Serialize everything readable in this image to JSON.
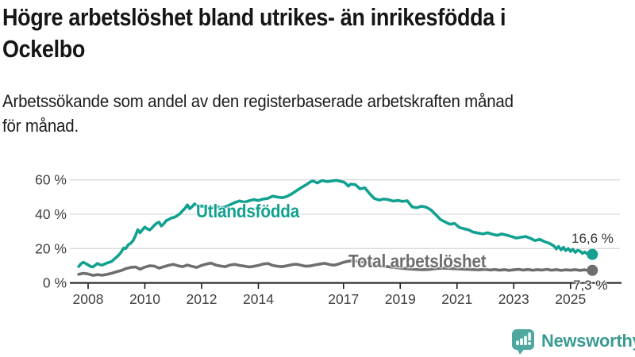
{
  "header": {
    "title_lines": [
      "Högre arbetslöshet bland utrikes- än inrikesfödda i",
      "Ockelbo"
    ],
    "subtitle_lines": [
      "Arbetssökande som andel av den registerbaserade arbetskraften månad",
      "för månad."
    ]
  },
  "chart_data": {
    "type": "line",
    "title": "Högre arbetslöshet bland utrikes- än inrikesfödda i Ockelbo",
    "subtitle": "Arbetssökande som andel av den registerbaserade arbetskraften månad för månad.",
    "unit": "%",
    "grid": true,
    "x_axis": {
      "range": [
        2007.6,
        2025.95
      ],
      "ticks": [
        {
          "label": "2008",
          "value": 2008
        },
        {
          "label": "2010",
          "value": 2010
        },
        {
          "label": "2012",
          "value": 2012
        },
        {
          "label": "2014",
          "value": 2014
        },
        {
          "label": "2017",
          "value": 2017
        },
        {
          "label": "2019",
          "value": 2019
        },
        {
          "label": "2021",
          "value": 2021
        },
        {
          "label": "2023",
          "value": 2023
        },
        {
          "label": "2025",
          "value": 2025
        }
      ]
    },
    "y_axis": {
      "range": [
        0,
        62
      ],
      "ticks": [
        {
          "label": "0 %",
          "value": 0
        },
        {
          "label": "20 %",
          "value": 20
        },
        {
          "label": "40 %",
          "value": 40
        },
        {
          "label": "60 %",
          "value": 60
        }
      ]
    },
    "series": [
      {
        "name": "Utlandsfödda",
        "color": "#12a190",
        "end_label": "16,6 %",
        "end_value": 16.6,
        "points": [
          [
            2007.67,
            9.5
          ],
          [
            2007.75,
            11.2
          ],
          [
            2007.83,
            12.0
          ],
          [
            2007.95,
            11.0
          ],
          [
            2008.08,
            9.6
          ],
          [
            2008.17,
            9.3
          ],
          [
            2008.33,
            11.3
          ],
          [
            2008.42,
            10.6
          ],
          [
            2008.5,
            10.4
          ],
          [
            2008.58,
            11.0
          ],
          [
            2008.67,
            11.6
          ],
          [
            2008.83,
            12.5
          ],
          [
            2008.92,
            13.8
          ],
          [
            2009.0,
            15.0
          ],
          [
            2009.08,
            16.2
          ],
          [
            2009.17,
            18.0
          ],
          [
            2009.25,
            20.3
          ],
          [
            2009.33,
            20.0
          ],
          [
            2009.42,
            22.3
          ],
          [
            2009.5,
            23.0
          ],
          [
            2009.58,
            24.5
          ],
          [
            2009.67,
            27.5
          ],
          [
            2009.75,
            31.0
          ],
          [
            2009.83,
            29.2
          ],
          [
            2009.92,
            31.0
          ],
          [
            2010.0,
            32.5
          ],
          [
            2010.08,
            31.5
          ],
          [
            2010.17,
            30.8
          ],
          [
            2010.25,
            32.0
          ],
          [
            2010.33,
            33.5
          ],
          [
            2010.42,
            34.8
          ],
          [
            2010.5,
            35.4
          ],
          [
            2010.58,
            33.1
          ],
          [
            2010.67,
            34.5
          ],
          [
            2010.75,
            36.2
          ],
          [
            2010.83,
            36.8
          ],
          [
            2010.92,
            37.7
          ],
          [
            2011.0,
            38.0
          ],
          [
            2011.08,
            38.5
          ],
          [
            2011.17,
            39.5
          ],
          [
            2011.25,
            40.5
          ],
          [
            2011.33,
            42.0
          ],
          [
            2011.42,
            43.5
          ],
          [
            2011.5,
            45.4
          ],
          [
            2011.58,
            43.2
          ],
          [
            2011.67,
            44.5
          ],
          [
            2011.75,
            46.0
          ],
          [
            2011.83,
            45.2
          ],
          [
            2011.92,
            44.3
          ],
          [
            2012.0,
            44.8
          ],
          [
            2012.17,
            44.2
          ],
          [
            2012.33,
            43.6
          ],
          [
            2012.5,
            44.5
          ],
          [
            2012.67,
            43.8
          ],
          [
            2012.83,
            44.2
          ],
          [
            2013.0,
            45.5
          ],
          [
            2013.17,
            46.8
          ],
          [
            2013.33,
            47.7
          ],
          [
            2013.5,
            47.0
          ],
          [
            2013.67,
            47.8
          ],
          [
            2013.83,
            48.5
          ],
          [
            2014.0,
            48.0
          ],
          [
            2014.17,
            48.8
          ],
          [
            2014.33,
            49.2
          ],
          [
            2014.5,
            50.5
          ],
          [
            2014.67,
            50.0
          ],
          [
            2014.83,
            49.6
          ],
          [
            2015.0,
            50.3
          ],
          [
            2015.17,
            51.8
          ],
          [
            2015.33,
            53.5
          ],
          [
            2015.5,
            55.4
          ],
          [
            2015.67,
            57.0
          ],
          [
            2015.83,
            58.8
          ],
          [
            2015.92,
            59.4
          ],
          [
            2016.08,
            58.2
          ],
          [
            2016.17,
            59.0
          ],
          [
            2016.25,
            59.6
          ],
          [
            2016.42,
            59.0
          ],
          [
            2016.58,
            59.3
          ],
          [
            2016.75,
            59.7
          ],
          [
            2016.92,
            59.0
          ],
          [
            2017.0,
            58.8
          ],
          [
            2017.08,
            57.9
          ],
          [
            2017.17,
            56.3
          ],
          [
            2017.25,
            57.5
          ],
          [
            2017.42,
            57.2
          ],
          [
            2017.58,
            54.8
          ],
          [
            2017.75,
            55.4
          ],
          [
            2017.92,
            52.0
          ],
          [
            2018.08,
            49.2
          ],
          [
            2018.25,
            48.2
          ],
          [
            2018.42,
            48.8
          ],
          [
            2018.58,
            48.5
          ],
          [
            2018.75,
            47.6
          ],
          [
            2018.92,
            48.0
          ],
          [
            2019.08,
            47.5
          ],
          [
            2019.25,
            47.8
          ],
          [
            2019.42,
            44.2
          ],
          [
            2019.58,
            43.8
          ],
          [
            2019.75,
            44.6
          ],
          [
            2019.92,
            44.0
          ],
          [
            2020.08,
            42.5
          ],
          [
            2020.25,
            39.8
          ],
          [
            2020.42,
            36.9
          ],
          [
            2020.58,
            35.5
          ],
          [
            2020.75,
            34.2
          ],
          [
            2020.92,
            34.6
          ],
          [
            2021.08,
            32.3
          ],
          [
            2021.25,
            31.5
          ],
          [
            2021.42,
            30.8
          ],
          [
            2021.58,
            29.5
          ],
          [
            2021.75,
            29.0
          ],
          [
            2021.92,
            28.5
          ],
          [
            2022.08,
            29.2
          ],
          [
            2022.25,
            28.3
          ],
          [
            2022.42,
            27.7
          ],
          [
            2022.58,
            28.5
          ],
          [
            2022.75,
            27.8
          ],
          [
            2022.92,
            27.0
          ],
          [
            2023.08,
            26.1
          ],
          [
            2023.25,
            26.6
          ],
          [
            2023.42,
            27.0
          ],
          [
            2023.58,
            26.0
          ],
          [
            2023.75,
            24.6
          ],
          [
            2023.92,
            25.4
          ],
          [
            2024.08,
            24.0
          ],
          [
            2024.25,
            23.1
          ],
          [
            2024.42,
            21.5
          ],
          [
            2024.5,
            19.8
          ],
          [
            2024.58,
            21.2
          ],
          [
            2024.67,
            19.2
          ],
          [
            2024.75,
            20.8
          ],
          [
            2024.83,
            18.8
          ],
          [
            2024.92,
            20.0
          ],
          [
            2025.0,
            18.4
          ],
          [
            2025.08,
            19.6
          ],
          [
            2025.17,
            17.8
          ],
          [
            2025.25,
            19.0
          ],
          [
            2025.33,
            18.6
          ],
          [
            2025.42,
            17.2
          ],
          [
            2025.5,
            18.0
          ],
          [
            2025.58,
            17.0
          ],
          [
            2025.67,
            17.5
          ],
          [
            2025.77,
            16.6
          ]
        ]
      },
      {
        "name": "Total arbetslöshet",
        "color": "#6e6e6e",
        "end_label": "7,3 %",
        "end_value": 7.3,
        "points": [
          [
            2007.67,
            5.0
          ],
          [
            2007.83,
            5.6
          ],
          [
            2008.0,
            5.2
          ],
          [
            2008.17,
            4.4
          ],
          [
            2008.33,
            4.8
          ],
          [
            2008.5,
            4.5
          ],
          [
            2008.67,
            5.0
          ],
          [
            2008.83,
            5.6
          ],
          [
            2009.0,
            6.5
          ],
          [
            2009.17,
            7.2
          ],
          [
            2009.33,
            8.3
          ],
          [
            2009.5,
            9.0
          ],
          [
            2009.67,
            9.3
          ],
          [
            2009.83,
            8.0
          ],
          [
            2010.0,
            9.2
          ],
          [
            2010.17,
            10.0
          ],
          [
            2010.33,
            9.8
          ],
          [
            2010.5,
            8.6
          ],
          [
            2010.67,
            9.4
          ],
          [
            2010.83,
            10.2
          ],
          [
            2011.0,
            10.8
          ],
          [
            2011.17,
            10.0
          ],
          [
            2011.33,
            9.4
          ],
          [
            2011.5,
            10.4
          ],
          [
            2011.67,
            9.6
          ],
          [
            2011.83,
            9.0
          ],
          [
            2012.0,
            10.2
          ],
          [
            2012.17,
            11.0
          ],
          [
            2012.33,
            11.5
          ],
          [
            2012.5,
            10.4
          ],
          [
            2012.67,
            9.8
          ],
          [
            2012.83,
            9.4
          ],
          [
            2013.0,
            10.4
          ],
          [
            2013.17,
            10.8
          ],
          [
            2013.33,
            10.2
          ],
          [
            2013.5,
            9.8
          ],
          [
            2013.67,
            9.3
          ],
          [
            2013.83,
            9.6
          ],
          [
            2014.0,
            10.2
          ],
          [
            2014.17,
            11.0
          ],
          [
            2014.33,
            11.3
          ],
          [
            2014.5,
            10.2
          ],
          [
            2014.67,
            9.7
          ],
          [
            2014.83,
            9.4
          ],
          [
            2015.0,
            10.0
          ],
          [
            2015.17,
            10.6
          ],
          [
            2015.33,
            10.9
          ],
          [
            2015.5,
            10.3
          ],
          [
            2015.67,
            9.7
          ],
          [
            2015.83,
            9.9
          ],
          [
            2016.0,
            10.5
          ],
          [
            2016.17,
            11.0
          ],
          [
            2016.33,
            11.4
          ],
          [
            2016.5,
            10.7
          ],
          [
            2016.67,
            10.3
          ],
          [
            2016.83,
            11.0
          ],
          [
            2017.0,
            12.0
          ],
          [
            2017.17,
            12.6
          ],
          [
            2017.33,
            13.0
          ],
          [
            2017.5,
            12.5
          ],
          [
            2017.67,
            12.2
          ],
          [
            2017.83,
            11.8
          ],
          [
            2018.0,
            11.2
          ],
          [
            2018.25,
            10.4
          ],
          [
            2018.5,
            9.6
          ],
          [
            2018.75,
            9.0
          ],
          [
            2019.0,
            8.6
          ],
          [
            2019.25,
            8.2
          ],
          [
            2019.5,
            7.9
          ],
          [
            2019.75,
            7.7
          ],
          [
            2020.0,
            7.8
          ],
          [
            2020.25,
            8.3
          ],
          [
            2020.5,
            8.6
          ],
          [
            2020.75,
            8.4
          ],
          [
            2021.0,
            8.2
          ],
          [
            2021.25,
            8.0
          ],
          [
            2021.5,
            7.8
          ],
          [
            2021.75,
            7.6
          ],
          [
            2022.0,
            7.9
          ],
          [
            2022.17,
            7.5
          ],
          [
            2022.33,
            7.8
          ],
          [
            2022.5,
            7.4
          ],
          [
            2022.67,
            7.7
          ],
          [
            2022.83,
            7.3
          ],
          [
            2023.0,
            7.6
          ],
          [
            2023.17,
            7.9
          ],
          [
            2023.33,
            7.5
          ],
          [
            2023.5,
            7.8
          ],
          [
            2023.67,
            7.4
          ],
          [
            2023.83,
            7.7
          ],
          [
            2024.0,
            7.5
          ],
          [
            2024.17,
            7.9
          ],
          [
            2024.33,
            7.4
          ],
          [
            2024.5,
            7.7
          ],
          [
            2024.67,
            7.3
          ],
          [
            2024.83,
            7.6
          ],
          [
            2025.0,
            7.4
          ],
          [
            2025.17,
            7.7
          ],
          [
            2025.33,
            7.3
          ],
          [
            2025.5,
            7.6
          ],
          [
            2025.65,
            7.2
          ],
          [
            2025.77,
            7.3
          ]
        ]
      }
    ],
    "legend_position": "inline-labels"
  },
  "footer": {
    "brand": "Newsworthy"
  },
  "colors": {
    "accent_teal": "#12a190",
    "series_gray": "#6e6e6e",
    "logo_icon": "#4fa8a0",
    "logo_text": "#3a9b91",
    "grid": "#dadada",
    "axis": "#1a1a1a",
    "text_dark": "#161616",
    "axis_text": "#404040",
    "value_text": "#333333"
  }
}
